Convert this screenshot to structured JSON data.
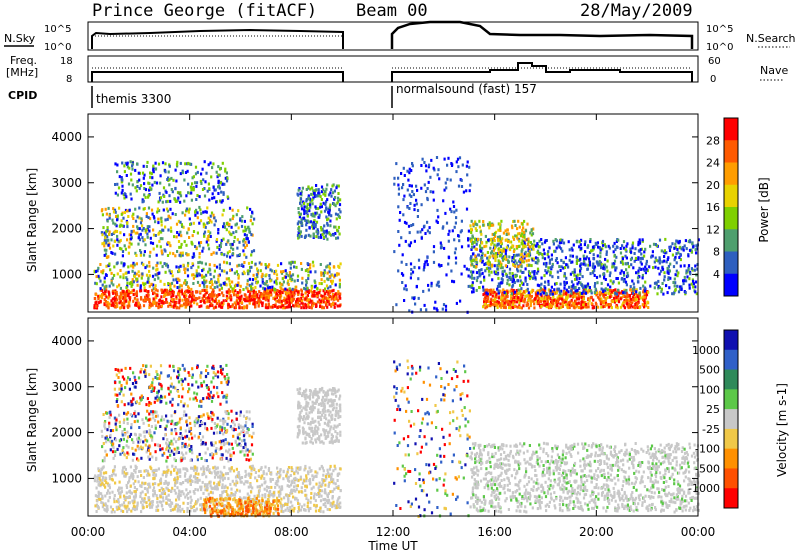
{
  "header": {
    "station": "Prince George (fitACF)",
    "beam": "Beam 00",
    "date": "28/May/2009"
  },
  "left_labels": {
    "nsky": "N.Sky",
    "nsky_top": "10^5",
    "nsky_bot": "10^0",
    "freq": "Freq.",
    "freq_unit": "[MHz]",
    "freq_top": "18",
    "freq_bot": "8",
    "cpid": "CPID"
  },
  "right_labels": {
    "nsearch": "N.Search",
    "nsearch_top": "10^5",
    "nsearch_bot": "10^0",
    "nave": "Nave",
    "nave_top": "60",
    "nave_bot": "0"
  },
  "cpid": {
    "program_1": "themis 3300",
    "program_2": "normalsound (fast) 157"
  },
  "x_axis": {
    "title": "Time UT",
    "ticks": [
      "00:00",
      "04:00",
      "08:00",
      "12:00",
      "16:00",
      "20:00",
      "00:00"
    ]
  },
  "power_panel": {
    "ylabel": "Slant Range [km]",
    "yticks": [
      "4000",
      "3000",
      "2000",
      "1000"
    ],
    "colorbar_label": "Power [dB]",
    "colorbar_ticks": [
      "28",
      "24",
      "20",
      "16",
      "12",
      "8",
      "4"
    ],
    "colors": [
      "#ff0000",
      "#ff5a00",
      "#ff9d00",
      "#e8d200",
      "#7fcf00",
      "#4f9f6e",
      "#2e5fbf",
      "#0000ff"
    ]
  },
  "velocity_panel": {
    "ylabel": "Slant Range [km]",
    "yticks": [
      "4000",
      "3000",
      "2000",
      "1000"
    ],
    "colorbar_label": "Velocity [m s-1]",
    "colorbar_ticks": [
      "1000",
      "500",
      "100",
      "25",
      "-25",
      "-100",
      "-500",
      "-1000"
    ],
    "colors": [
      "#1010b0",
      "#3060c8",
      "#2f8a5a",
      "#5cc848",
      "#c8c8c8",
      "#f0c848",
      "#ff9000",
      "#ff5000",
      "#ff0000"
    ]
  },
  "chart_data": [
    {
      "type": "heatmap",
      "title": "Power [dB]",
      "x_range_hours": [
        0,
        24
      ],
      "y_range_km": [
        180,
        4500
      ],
      "gap_hours": [
        10,
        12
      ],
      "color_scale": [
        4,
        28
      ]
    },
    {
      "type": "heatmap",
      "title": "Velocity [m s-1]",
      "x_range_hours": [
        0,
        24
      ],
      "y_range_km": [
        180,
        4500
      ],
      "gap_hours": [
        10,
        12
      ],
      "color_scale": [
        -1000,
        1000
      ]
    }
  ]
}
